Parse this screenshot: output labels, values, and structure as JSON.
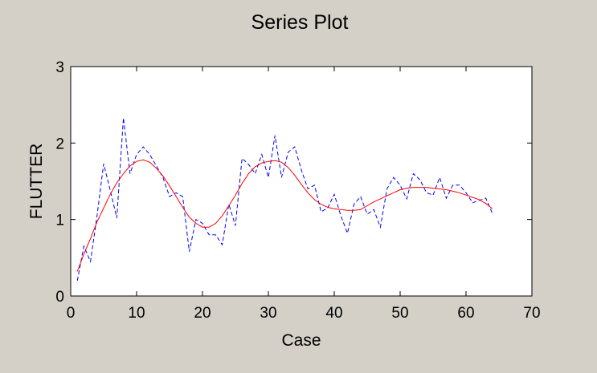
{
  "chart_data": {
    "type": "line",
    "title": "Series Plot",
    "xlabel": "Case",
    "ylabel": "FLUTTER",
    "xlim": [
      0,
      70
    ],
    "ylim": [
      0,
      3
    ],
    "xticks": [
      0,
      10,
      20,
      30,
      40,
      50,
      60,
      70
    ],
    "yticks": [
      0,
      1,
      2,
      3
    ],
    "grid": false,
    "legend": "none",
    "background": "#d4d0c8",
    "plot_background": "#ffffff",
    "series": [
      {
        "style": "dashed",
        "color": "#0000ff",
        "x": [
          1,
          2,
          3,
          4,
          5,
          6,
          7,
          8,
          9,
          10,
          11,
          12,
          13,
          14,
          15,
          16,
          17,
          18,
          19,
          20,
          21,
          22,
          23,
          24,
          25,
          26,
          27,
          28,
          29,
          30,
          31,
          32,
          33,
          34,
          35,
          36,
          37,
          38,
          39,
          40,
          41,
          42,
          43,
          44,
          45,
          46,
          47,
          48,
          49,
          50,
          51,
          52,
          53,
          54,
          55,
          56,
          57,
          58,
          59,
          60,
          61,
          62,
          63,
          64
        ],
        "y": [
          0.2,
          0.65,
          0.45,
          1.05,
          1.73,
          1.38,
          1.02,
          2.33,
          1.6,
          1.85,
          1.95,
          1.85,
          1.7,
          1.55,
          1.3,
          1.35,
          1.3,
          0.58,
          1.0,
          0.95,
          0.8,
          0.8,
          0.67,
          1.2,
          0.92,
          1.8,
          1.72,
          1.6,
          1.85,
          1.55,
          2.1,
          1.55,
          1.88,
          1.95,
          1.65,
          1.4,
          1.45,
          1.1,
          1.15,
          1.33,
          1.05,
          0.82,
          1.2,
          1.3,
          1.07,
          1.13,
          0.9,
          1.4,
          1.55,
          1.45,
          1.27,
          1.6,
          1.52,
          1.35,
          1.32,
          1.55,
          1.28,
          1.45,
          1.45,
          1.35,
          1.22,
          1.25,
          1.28,
          1.08
        ]
      },
      {
        "style": "solid",
        "color": "#ff0000",
        "x": [
          1,
          2,
          3,
          4,
          5,
          6,
          7,
          8,
          9,
          10,
          11,
          12,
          13,
          14,
          15,
          16,
          17,
          18,
          19,
          20,
          21,
          22,
          23,
          24,
          25,
          26,
          27,
          28,
          29,
          30,
          31,
          32,
          33,
          34,
          35,
          36,
          37,
          38,
          39,
          40,
          41,
          42,
          43,
          44,
          45,
          46,
          47,
          48,
          49,
          50,
          51,
          52,
          53,
          54,
          55,
          56,
          57,
          58,
          59,
          60,
          61,
          62,
          63,
          64
        ],
        "y": [
          0.32,
          0.55,
          0.75,
          0.97,
          1.15,
          1.33,
          1.48,
          1.6,
          1.7,
          1.76,
          1.78,
          1.75,
          1.67,
          1.57,
          1.44,
          1.3,
          1.16,
          1.03,
          0.95,
          0.9,
          0.9,
          0.95,
          1.05,
          1.18,
          1.32,
          1.47,
          1.6,
          1.69,
          1.74,
          1.76,
          1.77,
          1.75,
          1.68,
          1.58,
          1.46,
          1.35,
          1.26,
          1.2,
          1.16,
          1.14,
          1.13,
          1.12,
          1.12,
          1.13,
          1.18,
          1.23,
          1.27,
          1.31,
          1.35,
          1.39,
          1.41,
          1.42,
          1.42,
          1.42,
          1.41,
          1.4,
          1.39,
          1.37,
          1.35,
          1.32,
          1.29,
          1.26,
          1.21,
          1.14
        ]
      }
    ]
  }
}
